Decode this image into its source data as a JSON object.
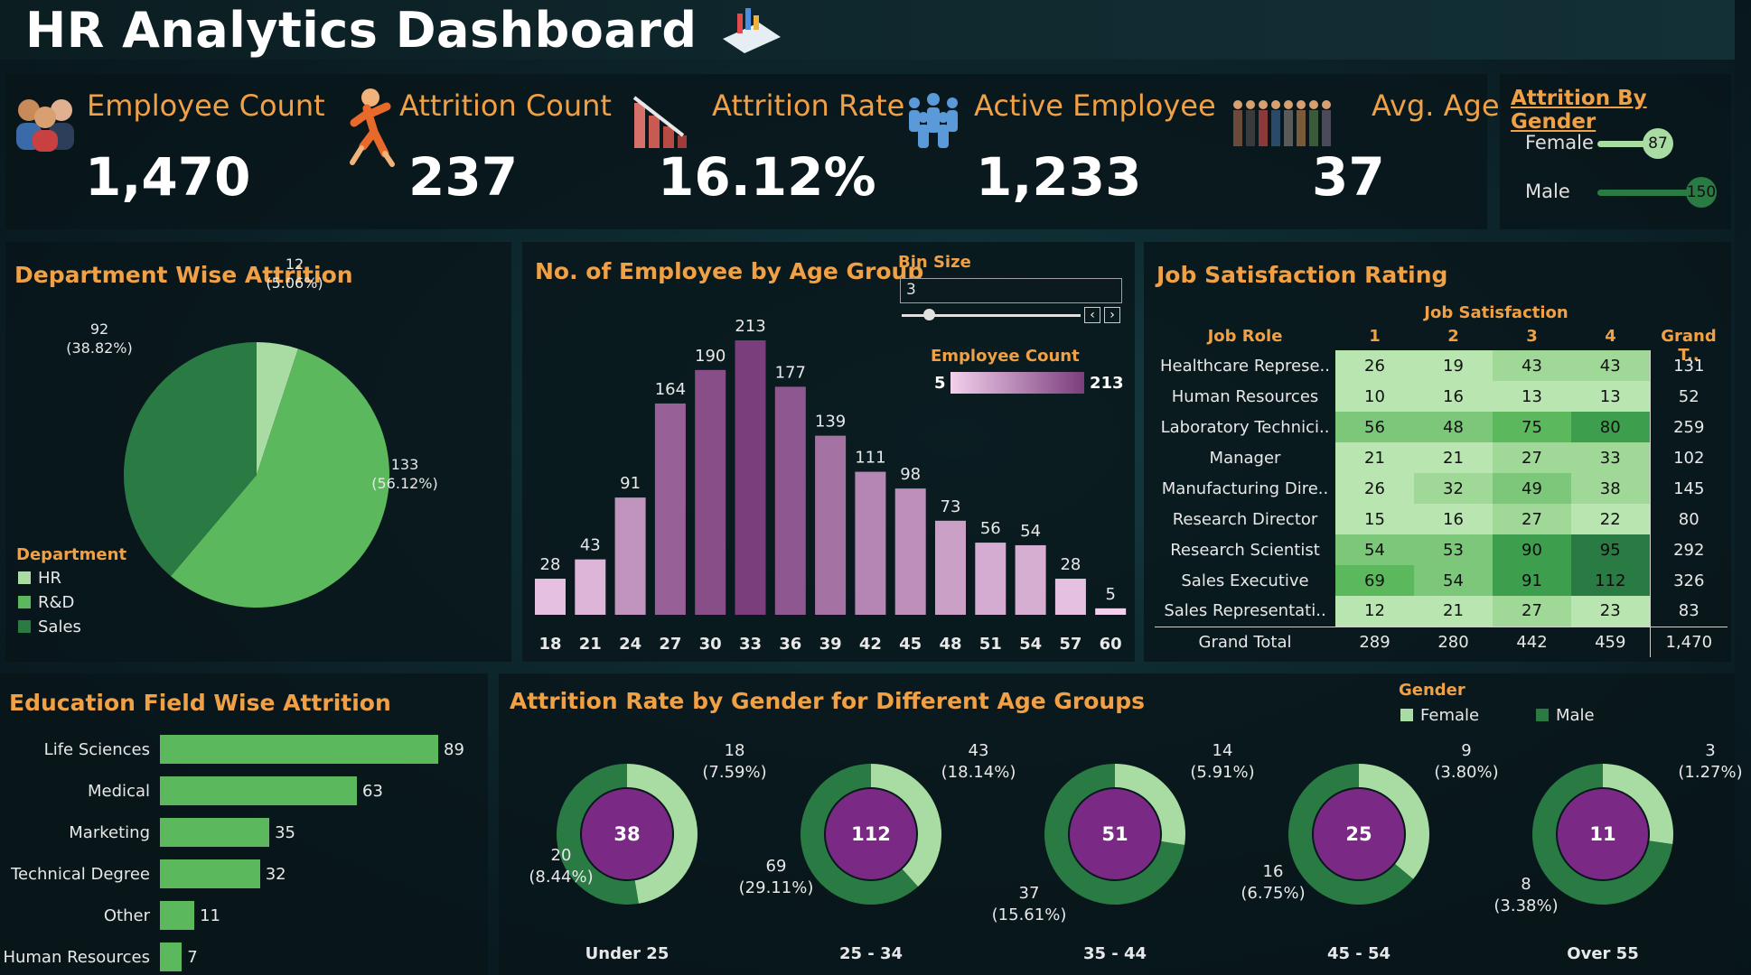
{
  "title": "HR Analytics Dashboard",
  "kpis": {
    "employee_count": {
      "label": "Employee Count",
      "value": "1,470"
    },
    "attrition_count": {
      "label": "Attrition Count",
      "value": "237"
    },
    "attrition_rate": {
      "label": "Attrition Rate",
      "value": "16.12%"
    },
    "active_employee": {
      "label": "Active Employee",
      "value": "1,233"
    },
    "avg_age": {
      "label": "Avg. Age",
      "value": "37"
    }
  },
  "attrition_by_gender": {
    "title": "Attrition By Gender",
    "rows": [
      {
        "label": "Female",
        "value": 87
      },
      {
        "label": "Male",
        "value": 150
      }
    ],
    "max": 150
  },
  "department": {
    "title": "Department Wise Attrition",
    "legend_title": "Department",
    "colors": {
      "HR": "#a8dca3",
      "R&D": "#5cb85c",
      "Sales": "#2a7a44"
    }
  },
  "age_group": {
    "title": "No. of Employee by Age Group",
    "bin_size_label": "Bin Size",
    "bin_size_value": "3",
    "scale_label": "Employee Count",
    "scale_min": "5",
    "scale_max": "213"
  },
  "job_satisfaction": {
    "title": "Job Satisfaction Rating",
    "col_group": "Job Satisfaction",
    "headers": [
      "Job Role",
      "1",
      "2",
      "3",
      "4",
      "Grand T.."
    ],
    "rows": [
      {
        "role": "Healthcare Represe..",
        "v": [
          26,
          19,
          43,
          43
        ],
        "total": "131"
      },
      {
        "role": "Human Resources",
        "v": [
          10,
          16,
          13,
          13
        ],
        "total": "52"
      },
      {
        "role": "Laboratory Technici..",
        "v": [
          56,
          48,
          75,
          80
        ],
        "total": "259"
      },
      {
        "role": "Manager",
        "v": [
          21,
          21,
          27,
          33
        ],
        "total": "102"
      },
      {
        "role": "Manufacturing Dire..",
        "v": [
          26,
          32,
          49,
          38
        ],
        "total": "145"
      },
      {
        "role": "Research Director",
        "v": [
          15,
          16,
          27,
          22
        ],
        "total": "80"
      },
      {
        "role": "Research Scientist",
        "v": [
          54,
          53,
          90,
          95
        ],
        "total": "292"
      },
      {
        "role": "Sales Executive",
        "v": [
          69,
          54,
          91,
          112
        ],
        "total": "326"
      },
      {
        "role": "Sales Representati..",
        "v": [
          12,
          21,
          27,
          23
        ],
        "total": "83"
      }
    ],
    "grand_total": {
      "role": "Grand Total",
      "v": [
        "289",
        "280",
        "442",
        "459"
      ],
      "total": "1,470"
    }
  },
  "education": {
    "title": "Education Field Wise Attrition"
  },
  "donuts": {
    "title": "Attrition Rate by Gender for Different Age Groups",
    "legend_title": "Gender",
    "legend": [
      {
        "label": "Female",
        "color": "#a8dca3"
      },
      {
        "label": "Male",
        "color": "#2a7a44"
      }
    ],
    "groups": [
      {
        "name": "Under 25",
        "total": "38",
        "female": 18,
        "female_label": "18\n(7.59%)",
        "male": 20,
        "male_label": "20\n(8.44%)"
      },
      {
        "name": "25 - 34",
        "total": "112",
        "female": 43,
        "female_label": "43\n(18.14%)",
        "male": 69,
        "male_label": "69\n(29.11%)"
      },
      {
        "name": "35 - 44",
        "total": "51",
        "female": 14,
        "female_label": "14\n(5.91%)",
        "male": 37,
        "male_label": "37\n(15.61%)"
      },
      {
        "name": "45 - 54",
        "total": "25",
        "female": 9,
        "female_label": "9\n(3.80%)",
        "male": 16,
        "male_label": "16\n(6.75%)"
      },
      {
        "name": "Over 55",
        "total": "11",
        "female": 3,
        "female_label": "3\n(1.27%)",
        "male": 8,
        "male_label": "8\n(3.38%)"
      }
    ]
  },
  "chart_data": [
    {
      "type": "pie",
      "title": "Department Wise Attrition",
      "legend": "Department",
      "slices": [
        {
          "name": "HR",
          "value": 12,
          "label": "12\n(5.06%)"
        },
        {
          "name": "R&D",
          "value": 133,
          "label": "133\n(56.12%)"
        },
        {
          "name": "Sales",
          "value": 92,
          "label": "92\n(38.82%)"
        }
      ]
    },
    {
      "type": "bar",
      "title": "No. of Employee by Age Group",
      "categories": [
        "18",
        "21",
        "24",
        "27",
        "30",
        "33",
        "36",
        "39",
        "42",
        "45",
        "48",
        "51",
        "54",
        "57",
        "60"
      ],
      "values": [
        28,
        43,
        91,
        164,
        190,
        213,
        177,
        139,
        111,
        98,
        73,
        56,
        54,
        28,
        5
      ],
      "color_scale": "Employee Count"
    },
    {
      "type": "bar",
      "orientation": "horizontal",
      "title": "Education Field Wise Attrition",
      "categories": [
        "Life Sciences",
        "Medical",
        "Marketing",
        "Technical Degree",
        "Other",
        "Human Resources"
      ],
      "values": [
        89,
        63,
        35,
        32,
        11,
        7
      ]
    }
  ]
}
